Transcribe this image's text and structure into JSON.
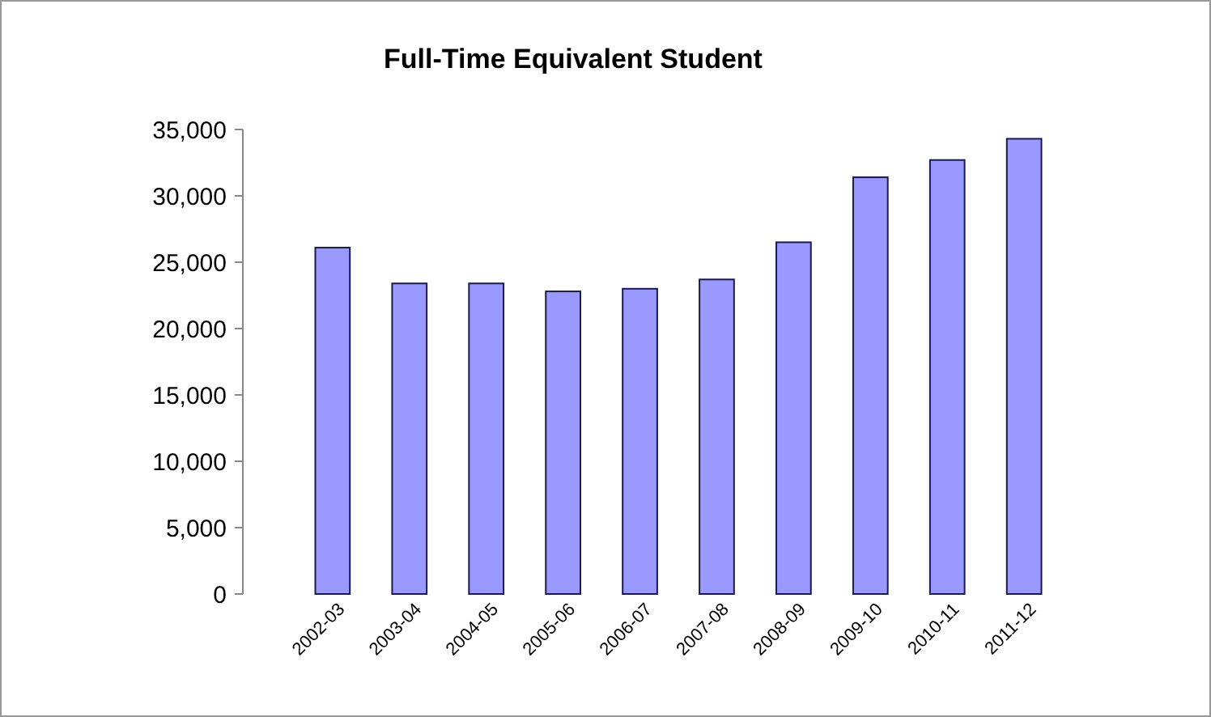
{
  "chart_data": {
    "type": "bar",
    "title": "Full-Time Equivalent Student",
    "categories": [
      "2002-03",
      "2003-04",
      "2004-05",
      "2005-06",
      "2006-07",
      "2007-08",
      "2008-09",
      "2009-10",
      "2010-11",
      "2011-12"
    ],
    "values": [
      26100,
      23400,
      23400,
      22800,
      23000,
      23700,
      26500,
      31400,
      32700,
      34300
    ],
    "color": "#9999ff",
    "ylim": [
      0,
      35000
    ],
    "yticks": [
      {
        "value": 0,
        "label": "0"
      },
      {
        "value": 5000,
        "label": "5,000"
      },
      {
        "value": 10000,
        "label": "10,000"
      },
      {
        "value": 15000,
        "label": "15,000"
      },
      {
        "value": 20000,
        "label": "20,000"
      },
      {
        "value": 25000,
        "label": "25,000"
      },
      {
        "value": 30000,
        "label": "30,000"
      },
      {
        "value": 35000,
        "label": "35,000"
      }
    ],
    "grid": false
  }
}
